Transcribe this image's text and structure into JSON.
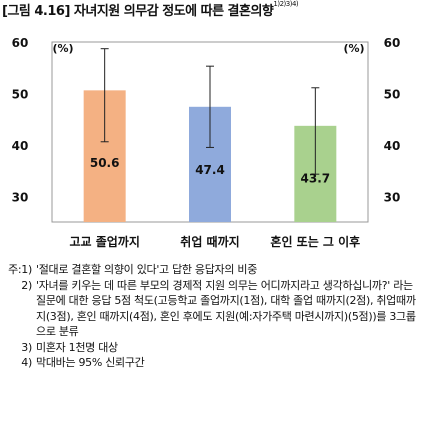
{
  "title": {
    "text": "[그림 4.16] 자녀지원 의무감 정도에 따른 결혼의향",
    "superscript": "1)2)3)4)"
  },
  "chart_data": {
    "type": "bar",
    "categories": [
      "고교 졸업까지",
      "취업 때까지",
      "혼인 또는 그 이후"
    ],
    "values": [
      50.6,
      47.4,
      43.7
    ],
    "error_low": [
      40.6,
      39.5,
      34.3
    ],
    "error_high": [
      58.7,
      55.3,
      51.1
    ],
    "colors": [
      "#f4b183",
      "#8faadc",
      "#a9d18e"
    ],
    "ylim": [
      25,
      60
    ],
    "yticks": [
      30,
      40,
      50,
      60
    ],
    "ytick_labels": [
      "30",
      "40",
      "50",
      "60"
    ],
    "ylabel_left": "(%)",
    "ylabel_right": "(%)",
    "value_labels": [
      "50.6",
      "47.4",
      "43.7"
    ]
  },
  "notes": [
    {
      "label": "주:1)",
      "text": "'절대로 결혼할 의향이 있다'고 답한 응답자의 비중"
    },
    {
      "label": "2)",
      "text": "'자녀를 키우는 데 따른 부모의 경제적 지원 의무는 어디까지라고 생각하십니까?' 라는 질문에 대한 응답 5점 척도(고등학교 졸업까지(1점), 대학 졸업 때까지(2점), 취업때까지(3점), 혼인 때까지(4점), 혼인 후에도 지원(예:자가주택 마련시까지)(5점))를 3그룹으로 분류"
    },
    {
      "label": "3)",
      "text": "미혼자 1천명 대상"
    },
    {
      "label": "4)",
      "text": "막대바는 95% 신뢰구간"
    }
  ]
}
